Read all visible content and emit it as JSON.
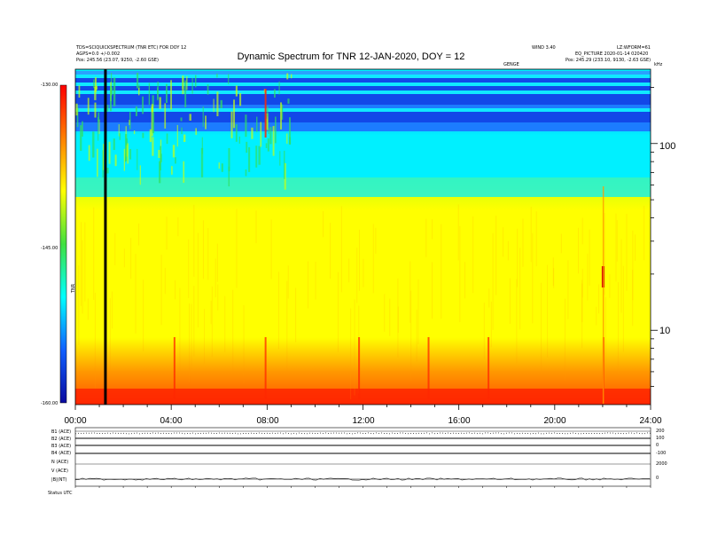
{
  "header": {
    "left_line1": "TDS=SCIQUICKSPECTRUM (TNR ETC) FOR DOY 12",
    "left_line2": "AGPS=0.0 +/-0.002",
    "left_line3": "Pos:   245.56 (23.07, 9250, -2.60 GSE)",
    "mid_right": "WIND 3.40",
    "right_line1": "LZ:WFORM=61",
    "right_line2": "EQ_PICTURE 2020-01-14 020420",
    "right_line3": "Pos:   245.29 (233.10, 9130, -2.63 GSE)",
    "small_mid": "GENGE",
    "far_right": "kHz"
  },
  "title": "Dynamic Spectrum for TNR 12-JAN-2020, DOY = 12",
  "colorbar": {
    "labels": [
      "-130.00",
      "-145.00",
      "-160.00"
    ],
    "units": "TNR"
  },
  "time_ticks": [
    "00:00",
    "04:00",
    "08:00",
    "12:00",
    "16:00",
    "20:00",
    "24:00"
  ],
  "freq_labels": [
    "100",
    "10"
  ],
  "bottom_panels": {
    "labels": [
      "B1 (ACE)",
      "B2 (ACE)",
      "B3 (ACE)",
      "B4 (ACE)",
      "N (ACE)",
      "V (ACE)",
      "|B|(NT)"
    ],
    "right_ticks": [
      "200",
      "100",
      "0",
      "-100",
      "2000",
      "0"
    ],
    "footer": "Status   UTC"
  },
  "chart_data": {
    "type": "heatmap",
    "title": "Dynamic Spectrum for TNR 12-JAN-2020, DOY = 12",
    "xlabel": "",
    "ylabel": "",
    "x_range": [
      "00:00",
      "24:00"
    ],
    "x_ticks": [
      "00:00",
      "04:00",
      "08:00",
      "12:00",
      "16:00",
      "20:00",
      "24:00"
    ],
    "y_scale": "log",
    "y_range_khz": [
      4,
      250
    ],
    "y_ticks": [
      100,
      10
    ],
    "color_range_db": [
      -160,
      -130
    ],
    "colormap": [
      "#0a0aa0",
      "#1060ff",
      "#00ffff",
      "#40e040",
      "#ffff00",
      "#ff8000",
      "#ff0000"
    ],
    "data_gap_hour": 1.2,
    "bands": [
      {
        "freq_low_khz": 200,
        "freq_high_khz": 250,
        "level_db": -133
      },
      {
        "freq_low_khz": 110,
        "freq_high_khz": 200,
        "level_db": -134
      },
      {
        "freq_low_khz": 55,
        "freq_high_khz": 110,
        "level_db": -138
      },
      {
        "freq_low_khz": 40,
        "freq_high_khz": 55,
        "level_db": -141
      },
      {
        "freq_low_khz": 15,
        "freq_high_khz": 40,
        "level_db": -145
      },
      {
        "freq_low_khz": 7,
        "freq_high_khz": 15,
        "level_db": -148
      },
      {
        "freq_low_khz": 5,
        "freq_high_khz": 7,
        "level_db": -153
      },
      {
        "freq_low_khz": 4,
        "freq_high_khz": 5,
        "level_db": -158
      }
    ],
    "bursts_hours": [
      4.1,
      7.9,
      11.8,
      14.7,
      17.2,
      22.0
    ]
  },
  "colors": {
    "stripe_dark": "#1248e8",
    "stripe_cyan": "#10e8ff",
    "stripe_top": "#2aa0ff",
    "blue_mid": "#1c7cff",
    "cyan": "#00f0ff",
    "green": "#30e060",
    "yellowgreen": "#c8ff10",
    "yellow": "#ffff00",
    "orange": "#ff9a00",
    "red": "#ff2800",
    "gap_line": "#000000"
  }
}
